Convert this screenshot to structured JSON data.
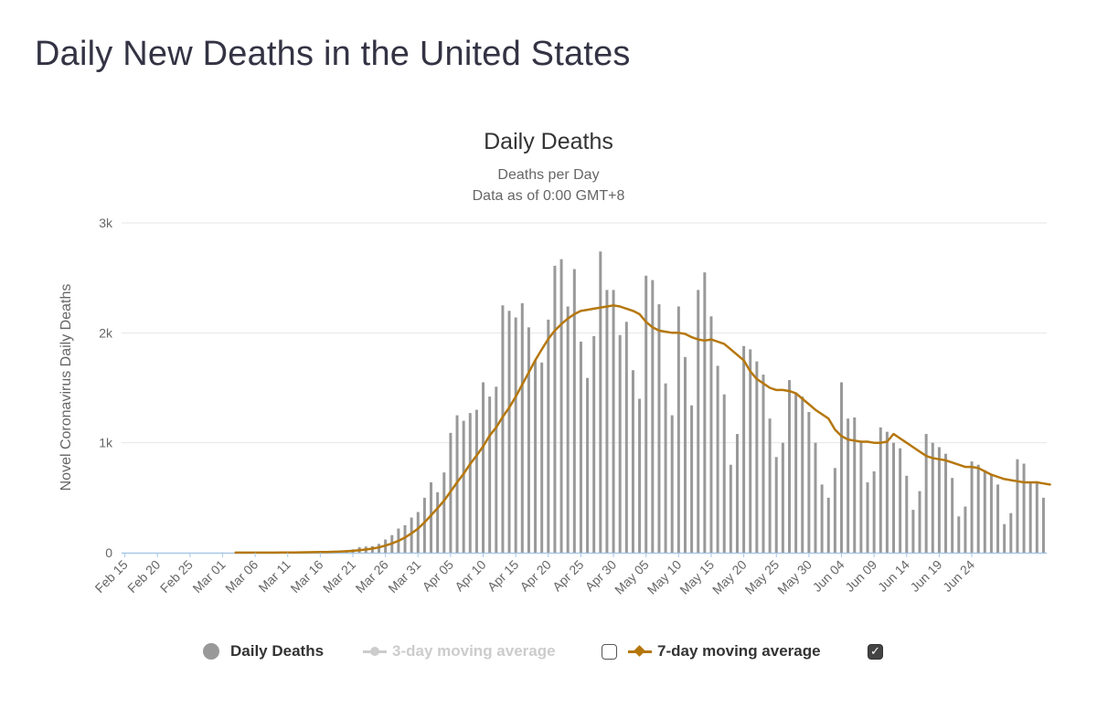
{
  "page": {
    "title": "Daily New Deaths in the United States"
  },
  "legend": {
    "daily_deaths_label": "Daily Deaths",
    "ma3_label": "3-day moving average",
    "ma7_label": "7-day moving average",
    "ma3_checked": false,
    "ma7_checked": true,
    "checkmark": "✓"
  },
  "colors": {
    "bar": "#999999",
    "ma7_line": "#b5770c",
    "ma3_line": "#cccccc",
    "grid": "#e6e6e6",
    "axis_line": "#a8c8e8",
    "text": "#666666",
    "title": "#333344"
  },
  "chart_data": {
    "type": "bar",
    "title": "Daily Deaths",
    "subtitle_lines": [
      "Deaths per Day",
      "Data as of 0:00 GMT+8"
    ],
    "ylabel": "Novel Coronavirus Daily Deaths",
    "xlabel": "",
    "ylim": [
      0,
      3000
    ],
    "yticks": [
      0,
      1000,
      2000,
      3000
    ],
    "ytick_labels": [
      "0",
      "1k",
      "2k",
      "3k"
    ],
    "grid": true,
    "legend_position": "bottom",
    "x_start": "Feb 15",
    "x_end": "Jun 27",
    "xtick_labels": [
      "Feb 15",
      "Feb 20",
      "Feb 25",
      "Mar 01",
      "Mar 06",
      "Mar 11",
      "Mar 16",
      "Mar 21",
      "Mar 26",
      "Mar 31",
      "Apr 05",
      "Apr 10",
      "Apr 15",
      "Apr 20",
      "Apr 25",
      "Apr 30",
      "May 05",
      "May 10",
      "May 15",
      "May 20",
      "May 25",
      "May 30",
      "Jun 04",
      "Jun 09",
      "Jun 14",
      "Jun 19",
      "Jun 24"
    ],
    "series": [
      {
        "name": "Daily Deaths",
        "type": "bar",
        "values": [
          0,
          0,
          0,
          0,
          0,
          0,
          0,
          0,
          0,
          0,
          0,
          0,
          0,
          0,
          0,
          1,
          0,
          1,
          1,
          1,
          1,
          1,
          1,
          3,
          3,
          3,
          3,
          5,
          9,
          9,
          10,
          11,
          12,
          20,
          22,
          31,
          50,
          56,
          60,
          80,
          120,
          160,
          220,
          250,
          320,
          370,
          500,
          640,
          550,
          730,
          1090,
          1250,
          1200,
          1270,
          1300,
          1550,
          1420,
          1510,
          2250,
          2200,
          2140,
          2270,
          2050,
          1750,
          1730,
          2120,
          2610,
          2670,
          2240,
          2580,
          1920,
          1590,
          1970,
          2740,
          2390,
          2390,
          1980,
          2100,
          1660,
          1400,
          2520,
          2480,
          2260,
          1540,
          1250,
          2240,
          1780,
          1340,
          2390,
          2550,
          2150,
          1700,
          1440,
          800,
          1080,
          1880,
          1850,
          1740,
          1620,
          1220,
          870,
          1000,
          1570,
          1450,
          1420,
          1280,
          1000,
          620,
          500,
          770,
          1550,
          1220,
          1230,
          1010,
          640,
          740,
          1140,
          1100,
          1000,
          950,
          700,
          390,
          560,
          1080,
          1000,
          960,
          900,
          680,
          330,
          420,
          830,
          800,
          750,
          710,
          620,
          260,
          360,
          850,
          810,
          640,
          650,
          500
        ]
      },
      {
        "name": "7-day moving average",
        "type": "line",
        "values": [
          null,
          null,
          null,
          null,
          null,
          null,
          null,
          null,
          null,
          null,
          null,
          null,
          null,
          null,
          null,
          null,
          null,
          1,
          1,
          1,
          1,
          1,
          1,
          1,
          2,
          2,
          2,
          3,
          4,
          5,
          6,
          7,
          8,
          10,
          13,
          17,
          23,
          29,
          37,
          48,
          65,
          84,
          108,
          138,
          176,
          219,
          276,
          340,
          405,
          474,
          556,
          640,
          719,
          807,
          884,
          967,
          1066,
          1140,
          1235,
          1320,
          1420,
          1530,
          1640,
          1750,
          1850,
          1945,
          2020,
          2080,
          2130,
          2170,
          2200,
          2210,
          2220,
          2230,
          2240,
          2250,
          2240,
          2220,
          2200,
          2170,
          2100,
          2050,
          2020,
          2010,
          2000,
          2000,
          1990,
          1960,
          1940,
          1930,
          1940,
          1920,
          1900,
          1850,
          1800,
          1750,
          1650,
          1580,
          1540,
          1500,
          1480,
          1480,
          1470,
          1450,
          1400,
          1350,
          1300,
          1260,
          1220,
          1120,
          1060,
          1030,
          1020,
          1010,
          1010,
          1000,
          1000,
          1010,
          1080,
          1040,
          1000,
          960,
          920,
          880,
          860,
          850,
          840,
          820,
          800,
          780,
          780,
          770,
          740,
          710,
          690,
          670,
          660,
          650,
          640,
          640,
          640,
          630,
          620
        ]
      }
    ]
  }
}
